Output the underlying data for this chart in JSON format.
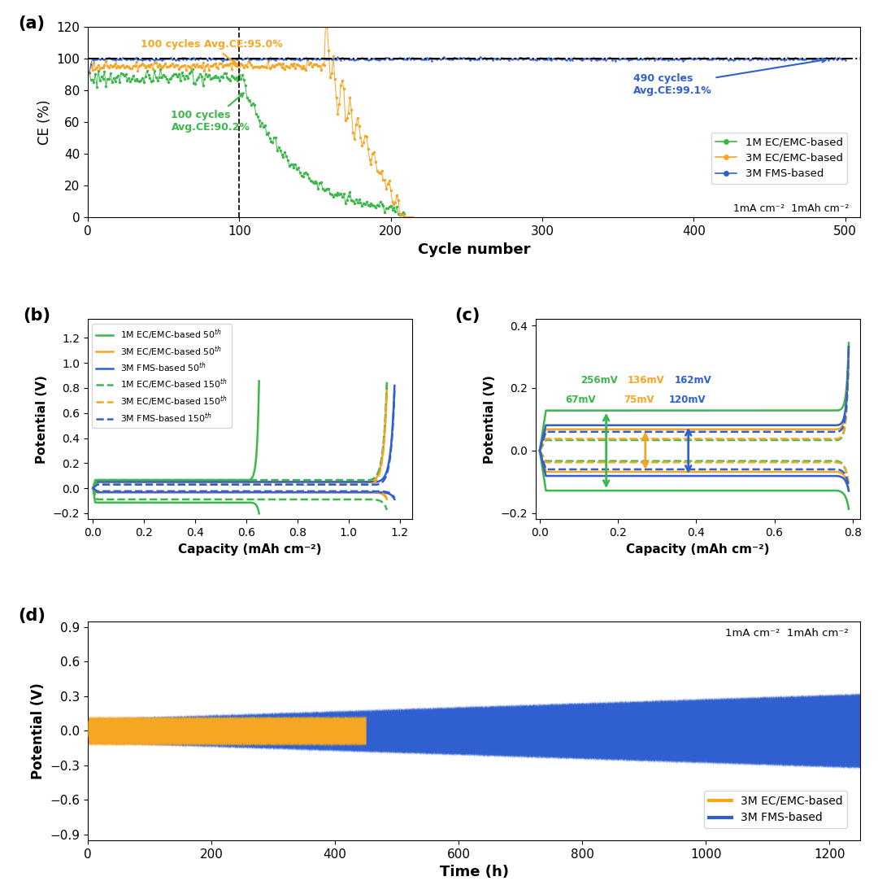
{
  "panel_a": {
    "title_label": "(a)",
    "xlim": [
      0,
      510
    ],
    "ylim": [
      0,
      120
    ],
    "xticks": [
      0,
      100,
      200,
      300,
      400,
      500
    ],
    "yticks": [
      0,
      20,
      40,
      60,
      80,
      100,
      120
    ],
    "xlabel": "Cycle number",
    "ylabel": "CE (%)",
    "annotation_green": "100 cycles\nAvg.CE:90.2%",
    "annotation_orange": "100 cycles Avg.CE:95.0%",
    "annotation_blue": "490 cycles\nAvg.CE:99.1%",
    "legend_note": "1mA cm⁻²  1mAh cm⁻²"
  },
  "panel_b": {
    "title_label": "(b)",
    "xlim": [
      -0.02,
      1.25
    ],
    "ylim": [
      -0.25,
      1.35
    ],
    "xticks": [
      0.0,
      0.2,
      0.4,
      0.6,
      0.8,
      1.0,
      1.2
    ],
    "yticks": [
      -0.2,
      0.0,
      0.2,
      0.4,
      0.6,
      0.8,
      1.0,
      1.2
    ],
    "xlabel": "Capacity (mAh cm⁻²)",
    "ylabel": "Potential (V)"
  },
  "panel_c": {
    "title_label": "(c)",
    "xlim": [
      -0.01,
      0.82
    ],
    "ylim": [
      -0.22,
      0.42
    ],
    "xticks": [
      0.0,
      0.2,
      0.4,
      0.6,
      0.8
    ],
    "yticks": [
      -0.2,
      0.0,
      0.2,
      0.4
    ],
    "xlabel": "Capacity (mAh cm⁻²)",
    "ylabel": "Potential (V)",
    "ann_green_top": "256mV",
    "ann_orange_top": "136mV",
    "ann_blue_top": "162mV",
    "ann_green_bot": "67mV",
    "ann_orange_bot": "75mV",
    "ann_blue_bot": "120mV"
  },
  "panel_d": {
    "title_label": "(d)",
    "xlim": [
      0,
      1250
    ],
    "ylim": [
      -0.95,
      0.95
    ],
    "xticks": [
      0,
      200,
      400,
      600,
      800,
      1000,
      1200
    ],
    "yticks": [
      -0.9,
      -0.6,
      -0.3,
      0.0,
      0.3,
      0.6,
      0.9
    ],
    "xlabel": "Time (h)",
    "ylabel": "Potential (V)",
    "legend_note": "1mA cm⁻²  1mAh cm⁻²"
  },
  "colors": {
    "green": "#3cb84a",
    "orange": "#f5a623",
    "blue": "#3060d0",
    "background": "#ffffff"
  }
}
